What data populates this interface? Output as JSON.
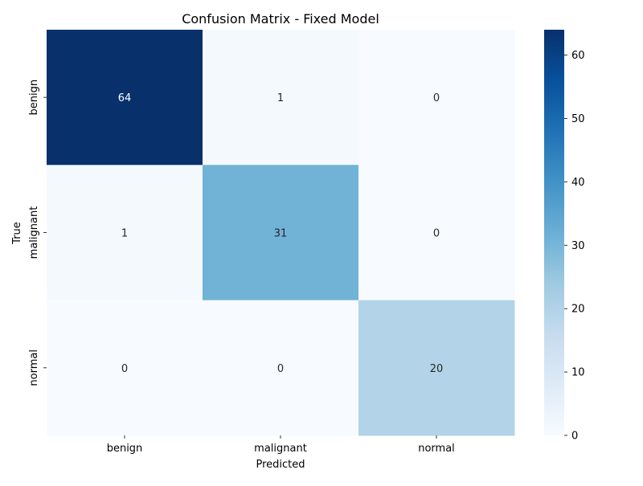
{
  "chart_data": {
    "type": "heatmap",
    "title": "Confusion Matrix - Fixed Model",
    "xlabel": "Predicted",
    "ylabel": "True",
    "x_categories": [
      "benign",
      "malignant",
      "normal"
    ],
    "y_categories": [
      "benign",
      "malignant",
      "normal"
    ],
    "values": [
      [
        64,
        1,
        0
      ],
      [
        1,
        31,
        0
      ],
      [
        0,
        0,
        20
      ]
    ],
    "colorbar": {
      "range": [
        0,
        64
      ],
      "ticks": [
        "0",
        "10",
        "20",
        "30",
        "40",
        "50",
        "60"
      ]
    },
    "colormap": [
      "#f7fbff",
      "#deebf7",
      "#c6dbef",
      "#9ecae1",
      "#6baed6",
      "#4292c6",
      "#2171b5",
      "#08519c",
      "#08306b"
    ]
  }
}
